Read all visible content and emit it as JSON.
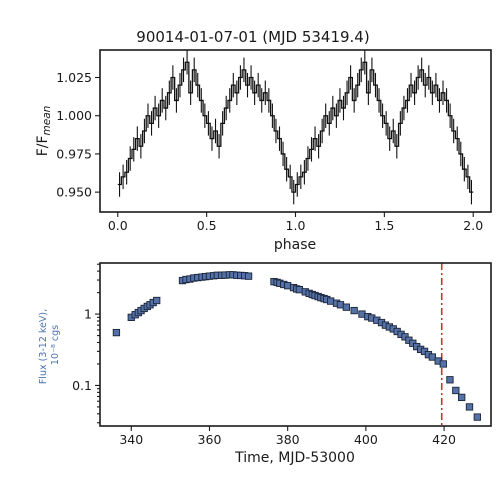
{
  "chart_data": [
    {
      "type": "line",
      "title": "90014-01-07-01 (MJD 53419.4)",
      "xlabel": "phase",
      "ylabel_main": "F/F",
      "ylabel_sub": "mean",
      "xlim": [
        -0.1,
        2.1
      ],
      "ylim": [
        0.937,
        1.043
      ],
      "xticks": [
        0.0,
        0.5,
        1.0,
        1.5,
        2.0
      ],
      "xtick_labels": [
        "0.0",
        "0.5",
        "1.0",
        "1.5",
        "2.0"
      ],
      "yticks": [
        0.95,
        0.975,
        1.0,
        1.025
      ],
      "ytick_labels": [
        "0.950",
        "0.975",
        "1.000",
        "1.025"
      ],
      "grid": false,
      "pulse_profile": {
        "bin_width": 0.02,
        "values": [
          0.955,
          0.96,
          0.963,
          0.972,
          0.978,
          0.985,
          0.98,
          0.99,
          1.0,
          0.995,
          1.005,
          1.0,
          1.01,
          1.005,
          1.015,
          1.025,
          1.01,
          1.02,
          1.03,
          1.035,
          1.015,
          1.03,
          1.02,
          1.01,
          1.0,
          0.995,
          0.985,
          0.99,
          0.98,
          0.995,
          1.005,
          1.01,
          1.02,
          1.015,
          1.025,
          1.03,
          1.02,
          1.025,
          1.015,
          1.02,
          1.01,
          1.015,
          1.01,
          1.0,
          0.99,
          0.985,
          0.975,
          0.965,
          0.96,
          0.95
        ],
        "errors": [
          0.008,
          0.008,
          0.008,
          0.008,
          0.008,
          0.008,
          0.008,
          0.008,
          0.008,
          0.008,
          0.008,
          0.008,
          0.008,
          0.008,
          0.008,
          0.008,
          0.008,
          0.008,
          0.008,
          0.008,
          0.008,
          0.008,
          0.008,
          0.008,
          0.008,
          0.008,
          0.008,
          0.008,
          0.008,
          0.008,
          0.008,
          0.008,
          0.008,
          0.008,
          0.008,
          0.008,
          0.008,
          0.008,
          0.008,
          0.008,
          0.008,
          0.008,
          0.008,
          0.008,
          0.008,
          0.008,
          0.008,
          0.008,
          0.008,
          0.008
        ],
        "repeat_cycles": 2
      }
    },
    {
      "type": "scatter",
      "xlabel": "Time, MJD-53000",
      "ylabel_line1": "Flux (3-12 keV),",
      "ylabel_line2": "10⁻⁸ cgs",
      "yscale": "log",
      "xlim": [
        332,
        432
      ],
      "ylim": [
        0.027,
        5.2
      ],
      "xticks": [
        340,
        360,
        380,
        400,
        420
      ],
      "xtick_labels": [
        "340",
        "360",
        "380",
        "400",
        "420"
      ],
      "yticks": [
        0.1,
        1
      ],
      "ytick_labels": [
        "0.1",
        "1"
      ],
      "grid": false,
      "marker_color": "#5572a8",
      "vline_x": 419.4,
      "vline_color": "#c0392b",
      "points": [
        [
          336.2,
          0.55
        ],
        [
          340.0,
          0.9
        ],
        [
          341.0,
          0.98
        ],
        [
          341.8,
          1.05
        ],
        [
          342.5,
          1.12
        ],
        [
          343.3,
          1.2
        ],
        [
          344.1,
          1.28
        ],
        [
          344.8,
          1.35
        ],
        [
          345.6,
          1.45
        ],
        [
          346.5,
          1.55
        ],
        [
          353.1,
          2.95
        ],
        [
          354.0,
          3.05
        ],
        [
          355.0,
          3.1
        ],
        [
          356.0,
          3.2
        ],
        [
          357.0,
          3.25
        ],
        [
          358.1,
          3.3
        ],
        [
          359.0,
          3.35
        ],
        [
          360.0,
          3.4
        ],
        [
          361.1,
          3.45
        ],
        [
          362.0,
          3.5
        ],
        [
          363.1,
          3.5
        ],
        [
          364.0,
          3.52
        ],
        [
          365.1,
          3.55
        ],
        [
          366.0,
          3.55
        ],
        [
          367.0,
          3.5
        ],
        [
          368.0,
          3.48
        ],
        [
          369.0,
          3.45
        ],
        [
          370.0,
          3.4
        ],
        [
          376.5,
          2.85
        ],
        [
          377.3,
          2.78
        ],
        [
          378.0,
          2.7
        ],
        [
          379.0,
          2.6
        ],
        [
          380.0,
          2.5
        ],
        [
          381.5,
          2.35
        ],
        [
          382.3,
          2.25
        ],
        [
          383.0,
          2.2
        ],
        [
          384.5,
          2.05
        ],
        [
          385.5,
          1.95
        ],
        [
          386.3,
          1.88
        ],
        [
          387.0,
          1.82
        ],
        [
          387.8,
          1.76
        ],
        [
          388.5,
          1.7
        ],
        [
          389.3,
          1.65
        ],
        [
          390.0,
          1.6
        ],
        [
          391.0,
          1.52
        ],
        [
          392.5,
          1.42
        ],
        [
          393.5,
          1.35
        ],
        [
          395.0,
          1.25
        ],
        [
          397.0,
          1.12
        ],
        [
          399.0,
          1.0
        ],
        [
          400.5,
          0.92
        ],
        [
          401.5,
          0.88
        ],
        [
          402.8,
          0.82
        ],
        [
          404.0,
          0.76
        ],
        [
          405.0,
          0.7
        ],
        [
          406.0,
          0.66
        ],
        [
          407.0,
          0.62
        ],
        [
          408.0,
          0.57
        ],
        [
          409.0,
          0.52
        ],
        [
          410.0,
          0.48
        ],
        [
          411.0,
          0.43
        ],
        [
          412.0,
          0.39
        ],
        [
          413.0,
          0.35
        ],
        [
          414.0,
          0.32
        ],
        [
          415.0,
          0.3
        ],
        [
          416.0,
          0.27
        ],
        [
          417.0,
          0.25
        ],
        [
          418.5,
          0.22
        ],
        [
          419.8,
          0.2
        ],
        [
          421.5,
          0.12
        ],
        [
          423.0,
          0.085
        ],
        [
          424.5,
          0.068
        ],
        [
          426.5,
          0.05
        ],
        [
          428.5,
          0.036
        ]
      ]
    }
  ]
}
